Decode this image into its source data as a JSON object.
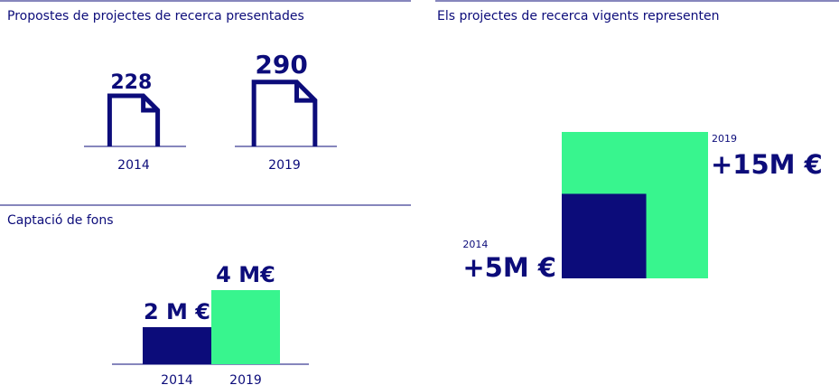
{
  "chart_data": [
    {
      "type": "pictograph",
      "title": "Propostes de projectes de recerca presentades",
      "categories": [
        "2014",
        "2019"
      ],
      "values": [
        228,
        290
      ],
      "color": "#0c0c7a"
    },
    {
      "type": "bar",
      "title": "Captació de fons",
      "categories": [
        "2014",
        "2019"
      ],
      "values": [
        2,
        4
      ],
      "value_labels": [
        "2 M €",
        "4 M€"
      ],
      "colors": [
        "#0c0c7a",
        "#38f58e"
      ]
    },
    {
      "type": "nested-square",
      "title": "Els projectes de recerca vigents representen",
      "categories": [
        "2014",
        "2019"
      ],
      "values": [
        5,
        15
      ],
      "value_labels": [
        "+5M €",
        "+15M €"
      ],
      "colors": [
        "#0c0c7a",
        "#38f58e"
      ]
    }
  ]
}
